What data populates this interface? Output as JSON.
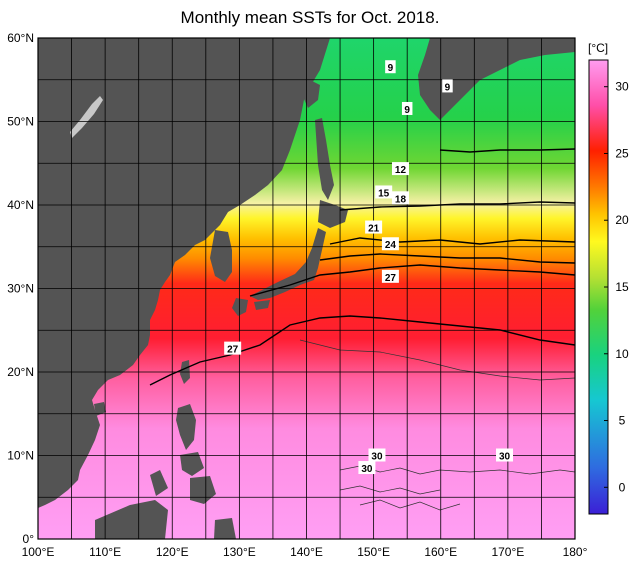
{
  "title": "Monthly mean SSTs for Oct. 2018.",
  "map": {
    "lon_range": [
      100,
      180
    ],
    "lat_range": [
      0,
      60
    ],
    "lon_labels": [
      "100°E",
      "110°E",
      "120°E",
      "130°E",
      "140°E",
      "150°E",
      "160°E",
      "170°E",
      "180°"
    ],
    "lat_labels": [
      "0°",
      "10°N",
      "20°N",
      "30°N",
      "40°N",
      "50°N",
      "60°N"
    ],
    "contour_labels": [
      {
        "text": "9",
        "lon": 152.5,
        "lat": 56.5
      },
      {
        "text": "9",
        "lon": 161.0,
        "lat": 54.2
      },
      {
        "text": "9",
        "lon": 155.0,
        "lat": 51.5
      },
      {
        "text": "12",
        "lon": 154.0,
        "lat": 44.3
      },
      {
        "text": "15",
        "lon": 151.5,
        "lat": 41.5
      },
      {
        "text": "18",
        "lon": 154.0,
        "lat": 40.8
      },
      {
        "text": "21",
        "lon": 150.0,
        "lat": 37.3
      },
      {
        "text": "24",
        "lon": 152.5,
        "lat": 35.3
      },
      {
        "text": "27",
        "lon": 152.5,
        "lat": 31.4
      },
      {
        "text": "27",
        "lon": 129.0,
        "lat": 22.8
      },
      {
        "text": "30",
        "lon": 150.5,
        "lat": 10.0
      },
      {
        "text": "30",
        "lon": 149.0,
        "lat": 8.5
      },
      {
        "text": "30",
        "lon": 169.5,
        "lat": 10.0
      }
    ]
  },
  "colorbar": {
    "unit_label": "[°C]",
    "range": [
      -2,
      32
    ],
    "ticks": [
      "0",
      "5",
      "10",
      "15",
      "20",
      "25",
      "30"
    ],
    "tick_values": [
      0,
      5,
      10,
      15,
      20,
      25,
      30
    ],
    "stops": [
      "#3b1fd6",
      "#2f6ae0",
      "#16c7d2",
      "#19d27f",
      "#52d23a",
      "#b4e033",
      "#fff91f",
      "#ffc400",
      "#ff7a00",
      "#ff2000",
      "#ff4ea8",
      "#ff9cf0"
    ]
  },
  "colors": {
    "land": "#545454",
    "lake": "#c8c8c8",
    "grid": "#000000"
  }
}
